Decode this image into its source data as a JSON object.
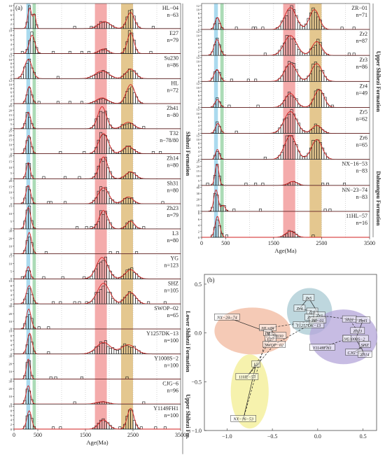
{
  "chart_data": [
    {
      "type": "histogram",
      "panel": "(a)",
      "xlabel": "Age(Ma)",
      "xlim": [
        0,
        3500
      ],
      "x_ticks": [
        "0",
        "500",
        "1500",
        "2500",
        "3500"
      ],
      "bands": [
        {
          "range": [
            260,
            340
          ],
          "color": "#8ecde8"
        },
        {
          "range": [
            390,
            460
          ],
          "color": "#8fcf9e"
        },
        {
          "range": [
            1700,
            1950
          ],
          "color": "#f08f8f"
        },
        {
          "range": [
            2250,
            2500
          ],
          "color": "#dbb46a"
        }
      ],
      "groups": [
        {
          "label": "Shihezi Formation",
          "rows": [
            0,
            11
          ]
        },
        {
          "label": "Lower Shihezi Formation",
          "rows": [
            12,
            14
          ]
        },
        {
          "label": "Upper Shihezi Fm.",
          "rows": [
            15,
            17
          ]
        }
      ],
      "samples": [
        {
          "name": "HL−04",
          "n": "n−63",
          "ymax": 10,
          "yticks": [
            "0",
            "2",
            "4",
            "6",
            "8",
            "10"
          ],
          "peaks": [
            [
              330,
              40,
              9
            ],
            [
              430,
              30,
              6
            ],
            [
              1900,
              120,
              3
            ],
            [
              2450,
              80,
              7
            ]
          ]
        },
        {
          "name": "E27",
          "n": "n=79",
          "ymax": 10,
          "yticks": [
            "0",
            "2",
            "4",
            "6",
            "8",
            "10"
          ],
          "peaks": [
            [
              380,
              60,
              8
            ],
            [
              1880,
              90,
              2
            ],
            [
              2450,
              70,
              9
            ]
          ]
        },
        {
          "name": "Su230",
          "n": "n=86",
          "ymax": 12,
          "yticks": [
            "0",
            "2",
            "4",
            "6",
            "8",
            "10",
            "12"
          ],
          "peaks": [
            [
              300,
              80,
              10
            ],
            [
              1850,
              140,
              4
            ],
            [
              2450,
              100,
              5
            ]
          ]
        },
        {
          "name": "HL",
          "n": "n=72",
          "ymax": 12,
          "yticks": [
            "0",
            "2",
            "4",
            "6",
            "8",
            "10",
            "12"
          ],
          "peaks": [
            [
              320,
              50,
              9
            ],
            [
              1850,
              120,
              3
            ],
            [
              2450,
              90,
              10
            ]
          ]
        },
        {
          "name": "Zh41",
          "n": "n−80",
          "ymax": 25,
          "yticks": [
            "0",
            "5",
            "10",
            "15",
            "20",
            "25"
          ],
          "peaks": [
            [
              300,
              50,
              18
            ],
            [
              1850,
              90,
              24
            ],
            [
              2400,
              110,
              7
            ]
          ]
        },
        {
          "name": "T32",
          "n": "n−78/80",
          "ymax": 25,
          "yticks": [
            "0",
            "5",
            "10",
            "15",
            "20",
            "25"
          ],
          "peaks": [
            [
              310,
              50,
              20
            ],
            [
              1880,
              100,
              22
            ],
            [
              2400,
              110,
              8
            ]
          ]
        },
        {
          "name": "Zh14",
          "n": "n=80",
          "ymax": 20,
          "yticks": [
            "0",
            "5",
            "10",
            "15",
            "20"
          ],
          "peaks": [
            [
              300,
              40,
              14
            ],
            [
              1880,
              90,
              19
            ],
            [
              2450,
              100,
              6
            ]
          ]
        },
        {
          "name": "Sh31",
          "n": "n=80",
          "ymax": 20,
          "yticks": [
            "0",
            "5",
            "10",
            "15",
            "20"
          ],
          "peaks": [
            [
              300,
              50,
              16
            ],
            [
              1880,
              110,
              14
            ],
            [
              2400,
              100,
              6
            ]
          ]
        },
        {
          "name": "Zh23",
          "n": "n=79",
          "ymax": 15,
          "yticks": [
            "0",
            "5",
            "10",
            "15"
          ],
          "peaks": [
            [
              300,
              50,
              14
            ],
            [
              1880,
              90,
              12
            ],
            [
              2450,
              80,
              5
            ]
          ]
        },
        {
          "name": "L3",
          "n": "n=80",
          "ymax": 30,
          "yticks": [
            "0",
            "10",
            "20",
            "30"
          ],
          "peaks": [
            [
              320,
              50,
              28
            ]
          ]
        },
        {
          "name": "YG",
          "n": "n=123",
          "ymax": 15,
          "yticks": [
            "0",
            "5",
            "10",
            "15"
          ],
          "peaks": [
            [
              300,
              40,
              8
            ],
            [
              1850,
              120,
              14
            ],
            [
              2450,
              110,
              6
            ]
          ]
        },
        {
          "name": "SHZ",
          "n": "n=105",
          "ymax": 10,
          "yticks": [
            "0",
            "2",
            "4",
            "6",
            "8",
            "10"
          ],
          "peaks": [
            [
              320,
              60,
              8
            ],
            [
              1880,
              130,
              9
            ],
            [
              2450,
              110,
              5
            ]
          ]
        },
        {
          "name": "SWOP−02",
          "n": "n=65",
          "ymax": 30,
          "yticks": [
            "0",
            "10",
            "20",
            "30"
          ],
          "peaks": [
            [
              310,
              50,
              26
            ]
          ]
        },
        {
          "name": "Y1257DK−13",
          "n": "n=100",
          "ymax": 10,
          "yticks": [
            "0",
            "2",
            "4",
            "6",
            "8",
            "10"
          ],
          "peaks": [
            [
              330,
              50,
              9
            ],
            [
              1880,
              150,
              5
            ],
            [
              2400,
              150,
              4
            ]
          ]
        },
        {
          "name": "Y1008S−2",
          "n": "n=100",
          "ymax": 30,
          "yticks": [
            "0",
            "10",
            "20",
            "30"
          ],
          "peaks": [
            [
              300,
              40,
              26
            ]
          ]
        },
        {
          "name": "CJG−6",
          "n": "n=96",
          "ymax": 30,
          "yticks": [
            "0",
            "10",
            "20",
            "30"
          ],
          "peaks": [
            [
              300,
              45,
              24
            ],
            [
              1850,
              120,
              3
            ]
          ]
        },
        {
          "name": "Y1149FH1",
          "n": "n=100",
          "ymax": 10,
          "yticks": [
            "0",
            "2",
            "4",
            "6",
            "8",
            "10"
          ],
          "peaks": [
            [
              320,
              50,
              8
            ],
            [
              1880,
              100,
              4
            ],
            [
              2450,
              70,
              9
            ]
          ]
        }
      ]
    },
    {
      "type": "histogram",
      "panel": "",
      "xlabel": "Age(Ma)",
      "xlim": [
        0,
        3500
      ],
      "x_ticks": [
        "0",
        "500",
        "1500",
        "2500",
        "3500"
      ],
      "groups": [
        {
          "label": "Upper Shihezi Formation",
          "rows": [
            0,
            5
          ]
        },
        {
          "label": "Dahuangou Formation",
          "rows": [
            6,
            8
          ]
        }
      ],
      "samples": [
        {
          "name": "ZR−01",
          "n": "n=71",
          "ymax": 12,
          "yticks": [
            "0",
            "2",
            "4",
            "6",
            "8",
            "10",
            "12"
          ],
          "peaks": [
            [
              330,
              50,
              6
            ],
            [
              1850,
              120,
              11
            ],
            [
              2350,
              100,
              10
            ]
          ]
        },
        {
          "name": "Zr2",
          "n": "n=87",
          "ymax": 12,
          "yticks": [
            "0",
            "2",
            "4",
            "6",
            "8",
            "10",
            "12"
          ],
          "peaks": [
            [
              320,
              60,
              8
            ],
            [
              1850,
              130,
              10
            ],
            [
              2400,
              100,
              7
            ]
          ]
        },
        {
          "name": "Zr3",
          "n": "n=86",
          "ymax": 12,
          "yticks": [
            "0",
            "2",
            "4",
            "6",
            "8",
            "10",
            "12"
          ],
          "peaks": [
            [
              320,
              60,
              6
            ],
            [
              1850,
              120,
              9
            ],
            [
              2400,
              110,
              9
            ]
          ]
        },
        {
          "name": "Zr4",
          "n": "n=49",
          "ymax": 12,
          "yticks": [
            "0",
            "2",
            "4",
            "6",
            "8",
            "10",
            "12"
          ],
          "peaks": [
            [
              330,
              50,
              4
            ],
            [
              1850,
              110,
              7
            ],
            [
              2450,
              100,
              9
            ]
          ]
        },
        {
          "name": "Zr5",
          "n": "n=62",
          "ymax": 12,
          "yticks": [
            "0",
            "2",
            "4",
            "6",
            "8",
            "10",
            "12"
          ],
          "peaks": [
            [
              340,
              50,
              5
            ],
            [
              1850,
              130,
              11
            ],
            [
              2400,
              100,
              4
            ]
          ]
        },
        {
          "name": "Zr6",
          "n": "n=65",
          "ymax": 12,
          "yticks": [
            "0",
            "2",
            "4",
            "6",
            "8",
            "10",
            "12"
          ],
          "peaks": [
            [
              330,
              40,
              5
            ],
            [
              1850,
              120,
              12
            ],
            [
              2400,
              110,
              10
            ]
          ]
        },
        {
          "name": "NX−16−53",
          "n": "n−83",
          "ymax": 25,
          "yticks": [
            "0",
            "5",
            "10",
            "15",
            "20",
            "25"
          ],
          "peaks": [
            [
              320,
              40,
              22
            ],
            [
              1900,
              90,
              4
            ]
          ]
        },
        {
          "name": "NN−23−74",
          "n": "n−83",
          "ymax": 40,
          "yticks": [
            "0",
            "10",
            "20",
            "30",
            "40"
          ],
          "peaks": [
            [
              300,
              45,
              36
            ],
            [
              450,
              40,
              10
            ]
          ]
        },
        {
          "name": "11HL−57",
          "n": "n=16",
          "ymax": 8,
          "yticks": [
            "0",
            "2",
            "4",
            "6",
            "8"
          ],
          "peaks": [
            [
              330,
              50,
              7
            ],
            [
              1850,
              100,
              2
            ]
          ]
        }
      ]
    },
    {
      "type": "scatter",
      "panel": "(b)",
      "xlim": [
        -1.25,
        0.65
      ],
      "ylim": [
        -1.0,
        0.6
      ],
      "x_ticks": [
        "−1.0",
        "−0.5",
        "0.0",
        "0.5"
      ],
      "y_ticks": [
        "0.5",
        "0.0",
        "−0.5",
        "−1.0"
      ],
      "points": [
        {
          "label": "NX−23−74",
          "x": -1.0,
          "y": 0.16
        },
        {
          "label": "NX−16−53",
          "x": -0.82,
          "y": -0.88
        },
        {
          "label": "11HL−57",
          "x": -0.78,
          "y": -0.45
        },
        {
          "label": "L3",
          "x": -0.68,
          "y": -0.32
        },
        {
          "label": "HL−04",
          "x": -0.55,
          "y": 0.05
        },
        {
          "label": "HL",
          "x": -0.55,
          "y": 0.0
        },
        {
          "label": "Su230",
          "x": -0.44,
          "y": -0.03
        },
        {
          "label": "E27",
          "x": -0.52,
          "y": -0.06
        },
        {
          "label": "SWOP−02",
          "x": -0.48,
          "y": -0.12
        },
        {
          "label": "Y1257DK−13",
          "x": -0.1,
          "y": 0.08
        },
        {
          "label": "Zr5",
          "x": -0.1,
          "y": 0.36
        },
        {
          "label": "Zr4",
          "x": -0.2,
          "y": 0.25
        },
        {
          "label": "Zr6",
          "x": -0.06,
          "y": 0.22
        },
        {
          "label": "Zr2",
          "x": -0.08,
          "y": 0.16
        },
        {
          "label": "Zr3",
          "x": 0.02,
          "y": 0.18
        },
        {
          "label": "ZR−01",
          "x": 0.0,
          "y": 0.13
        },
        {
          "label": "Sh31",
          "x": 0.35,
          "y": 0.14
        },
        {
          "label": "Zh41",
          "x": 0.5,
          "y": 0.13
        },
        {
          "label": "Zh23",
          "x": 0.44,
          "y": 0.02
        },
        {
          "label": "Y1008S−2",
          "x": 0.42,
          "y": -0.06
        },
        {
          "label": "YG",
          "x": 0.32,
          "y": -0.06
        },
        {
          "label": "SHZ",
          "x": 0.52,
          "y": -0.12
        },
        {
          "label": "CJG−6",
          "x": 0.4,
          "y": -0.2
        },
        {
          "label": "Zh14",
          "x": 0.52,
          "y": -0.22
        },
        {
          "label": "Y1149FH1",
          "x": 0.05,
          "y": -0.15
        }
      ],
      "solid_links": [
        [
          "NX−23−74",
          "Su230"
        ],
        [
          "NX−16−53",
          "L3"
        ],
        [
          "11HL−57",
          "L3"
        ],
        [
          "HL−04",
          "Su230"
        ],
        [
          "E27",
          "HL"
        ],
        [
          "Zr5",
          "Zr4"
        ],
        [
          "Zr4",
          "Zr6"
        ],
        [
          "Zr5",
          "Zr3"
        ],
        [
          "Sh31",
          "Zh41"
        ],
        [
          "Zh41",
          "Y1008S−2"
        ],
        [
          "Y1008S−2",
          "Zh14"
        ],
        [
          "SHZ",
          "CJG−6"
        ]
      ],
      "dashed_links": [
        [
          "L3",
          "E27"
        ],
        [
          "11HL−57",
          "SWOP−02"
        ],
        [
          "NX−16−53",
          "HL"
        ],
        [
          "SWOP−02",
          "Y1257DK−13"
        ],
        [
          "Y1257DK−13",
          "Zr6"
        ],
        [
          "ZR−01",
          "Zr2"
        ],
        [
          "Zr3",
          "Sh31"
        ],
        [
          "Y1149FH1",
          "YG"
        ],
        [
          "Zh23",
          "Sh31"
        ],
        [
          "HL−04",
          "ZR−01"
        ]
      ],
      "groups": [
        {
          "color": "#f1b89e",
          "points": [
            "NX−23−74",
            "HL−04",
            "HL",
            "Su230",
            "E27",
            "SWOP−02"
          ]
        },
        {
          "color": "#f3ee92",
          "points": [
            "L3",
            "11HL−57",
            "NX−16−53"
          ]
        },
        {
          "color": "#a8c9d3",
          "points": [
            "Zr5",
            "Zr4",
            "Zr6",
            "Zr2",
            "Zr3",
            "ZR−01",
            "Y1257DK−13"
          ]
        },
        {
          "color": "#b4a6d9",
          "points": [
            "Sh31",
            "Zh41",
            "Zh23",
            "Y1008S−2",
            "YG",
            "SHZ",
            "CJG−6",
            "Zh14",
            "Y1149FH1"
          ]
        }
      ]
    }
  ]
}
